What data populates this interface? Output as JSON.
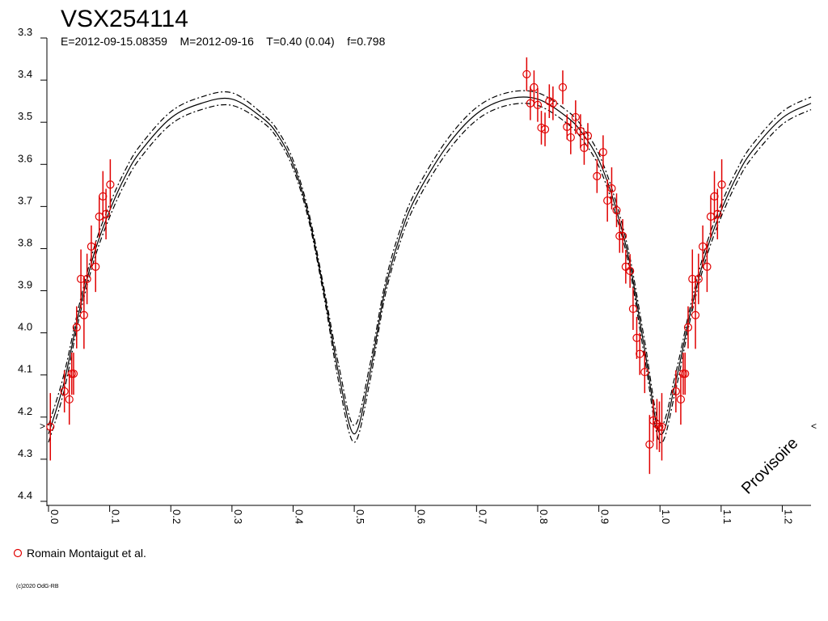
{
  "chart_data": {
    "type": "scatter",
    "title": "VSX254114",
    "subtitle": "E=2012-09-15.08359    M=2012-09-16    T=0.40 (0.04)    f=0.798",
    "annotations": [
      "Provisoire",
      ">",
      "<"
    ],
    "footer": "(c)2020 OdG-RB",
    "xlim": [
      0,
      1.247
    ],
    "ylim": [
      3.3,
      4.4
    ],
    "y_reversed": true,
    "xticks": [
      {
        "value": 0,
        "label": "0.0"
      },
      0.1,
      0.2,
      0.3,
      0.4,
      0.5,
      0.6,
      0.7,
      0.8,
      0.9,
      {
        "value": 1,
        "label": "1.0"
      },
      1.1,
      1.2
    ],
    "yticks": [
      3.3,
      3.4,
      3.5,
      3.6,
      3.7,
      3.8,
      3.9,
      {
        "value": 4,
        "label": "4.0"
      },
      4.1,
      4.2,
      4.3,
      4.4
    ],
    "models": [
      {
        "color": "#000000",
        "dashed": false,
        "x": [
          0,
          0.025,
          0.05,
          0.075,
          0.1,
          0.125,
          0.15,
          0.2,
          0.25,
          0.3,
          0.35,
          0.375,
          0.4,
          0.425,
          0.45,
          0.475,
          0.5,
          0.525,
          0.55,
          0.575,
          0.6,
          0.65,
          0.7,
          0.75,
          0.8,
          0.85,
          0.875,
          0.9,
          0.925,
          0.95,
          0.975,
          1.0,
          1.025,
          1.05,
          1.075,
          1.1,
          1.125,
          1.15,
          1.2,
          1.247
        ],
        "values": [
          4.24,
          4.12,
          3.95,
          3.81,
          3.71,
          3.63,
          3.57,
          3.49,
          3.455,
          3.445,
          3.49,
          3.53,
          3.6,
          3.72,
          3.9,
          4.1,
          4.24,
          4.1,
          3.9,
          3.77,
          3.68,
          3.56,
          3.48,
          3.445,
          3.445,
          3.49,
          3.53,
          3.59,
          3.69,
          3.83,
          4.04,
          4.24,
          4.12,
          3.95,
          3.81,
          3.71,
          3.63,
          3.57,
          3.49,
          3.455
        ]
      },
      {
        "color": "#000000",
        "dashed": true,
        "x": [
          0,
          0.025,
          0.05,
          0.075,
          0.1,
          0.125,
          0.15,
          0.2,
          0.25,
          0.3,
          0.35,
          0.375,
          0.4,
          0.425,
          0.45,
          0.475,
          0.5,
          0.525,
          0.55,
          0.575,
          0.6,
          0.65,
          0.7,
          0.75,
          0.8,
          0.85,
          0.875,
          0.9,
          0.925,
          0.95,
          0.975,
          1.0,
          1.025,
          1.05,
          1.075,
          1.1,
          1.125,
          1.15,
          1.2,
          1.247
        ],
        "values": [
          4.22,
          4.1,
          3.935,
          3.795,
          3.695,
          3.615,
          3.555,
          3.475,
          3.44,
          3.43,
          3.48,
          3.52,
          3.59,
          3.71,
          3.89,
          4.08,
          4.22,
          4.08,
          3.885,
          3.755,
          3.665,
          3.545,
          3.465,
          3.43,
          3.43,
          3.475,
          3.515,
          3.575,
          3.675,
          3.815,
          4.02,
          4.22,
          4.1,
          3.935,
          3.795,
          3.695,
          3.615,
          3.555,
          3.475,
          3.44
        ]
      },
      {
        "color": "#000000",
        "dashed": true,
        "x": [
          0,
          0.025,
          0.05,
          0.075,
          0.1,
          0.125,
          0.15,
          0.2,
          0.25,
          0.3,
          0.35,
          0.375,
          0.4,
          0.425,
          0.45,
          0.475,
          0.5,
          0.525,
          0.55,
          0.575,
          0.6,
          0.65,
          0.7,
          0.75,
          0.8,
          0.85,
          0.875,
          0.9,
          0.925,
          0.95,
          0.975,
          1.0,
          1.025,
          1.05,
          1.075,
          1.1,
          1.125,
          1.15,
          1.2,
          1.247
        ],
        "values": [
          4.26,
          4.14,
          3.965,
          3.825,
          3.725,
          3.645,
          3.585,
          3.505,
          3.47,
          3.46,
          3.5,
          3.54,
          3.61,
          3.73,
          3.91,
          4.12,
          4.26,
          4.12,
          3.915,
          3.785,
          3.695,
          3.575,
          3.495,
          3.46,
          3.46,
          3.505,
          3.545,
          3.605,
          3.705,
          3.845,
          4.06,
          4.26,
          4.14,
          3.965,
          3.825,
          3.725,
          3.645,
          3.585,
          3.505,
          3.47
        ]
      }
    ],
    "series": [
      {
        "name": "Romain Montaigut et al.",
        "color": "#e00000",
        "marker": "circle",
        "x": [
          0.003,
          0.026,
          0.034,
          0.038,
          0.041,
          0.046,
          0.053,
          0.058,
          0.063,
          0.07,
          0.077,
          0.083,
          0.089,
          0.094,
          0.101,
          0.782,
          0.788,
          0.794,
          0.8,
          0.806,
          0.812,
          0.819,
          0.825,
          0.841,
          0.848,
          0.854,
          0.862,
          0.87,
          0.876,
          0.882,
          0.897,
          0.907,
          0.914,
          0.921,
          0.929,
          0.934,
          0.939,
          0.944,
          0.951,
          0.956,
          0.962,
          0.967,
          0.975,
          0.983,
          0.989,
          0.995,
          0.999,
          1.003,
          1.026,
          1.034,
          1.038,
          1.041,
          1.046,
          1.053,
          1.058,
          1.063,
          1.07,
          1.077,
          1.083,
          1.089,
          1.094,
          1.101
        ],
        "values": [
          4.223,
          4.139,
          4.158,
          4.097,
          4.097,
          3.987,
          3.872,
          3.958,
          3.872,
          3.795,
          3.843,
          3.724,
          3.676,
          3.718,
          3.648,
          3.386,
          3.455,
          3.417,
          3.459,
          3.513,
          3.517,
          3.45,
          3.455,
          3.417,
          3.511,
          3.536,
          3.488,
          3.521,
          3.561,
          3.532,
          3.628,
          3.571,
          3.686,
          3.657,
          3.709,
          3.77,
          3.77,
          3.843,
          3.853,
          3.943,
          4.012,
          4.05,
          4.093,
          4.265,
          4.208,
          4.217,
          4.223,
          4.223,
          4.139,
          4.158,
          4.097,
          4.097,
          3.987,
          3.872,
          3.958,
          3.872,
          3.795,
          3.843,
          3.724,
          3.676,
          3.718,
          3.648
        ],
        "errors": [
          0.08,
          0.05,
          0.06,
          0.05,
          0.05,
          0.05,
          0.07,
          0.08,
          0.06,
          0.05,
          0.06,
          0.05,
          0.06,
          0.06,
          0.06,
          0.04,
          0.04,
          0.04,
          0.04,
          0.04,
          0.04,
          0.04,
          0.04,
          0.04,
          0.03,
          0.04,
          0.04,
          0.04,
          0.04,
          0.03,
          0.04,
          0.04,
          0.05,
          0.05,
          0.04,
          0.04,
          0.04,
          0.04,
          0.04,
          0.05,
          0.05,
          0.05,
          0.05,
          0.07,
          0.05,
          0.06,
          0.06,
          0.08,
          0.05,
          0.06,
          0.05,
          0.05,
          0.05,
          0.07,
          0.08,
          0.06,
          0.05,
          0.06,
          0.05,
          0.06,
          0.06,
          0.06
        ]
      }
    ]
  }
}
